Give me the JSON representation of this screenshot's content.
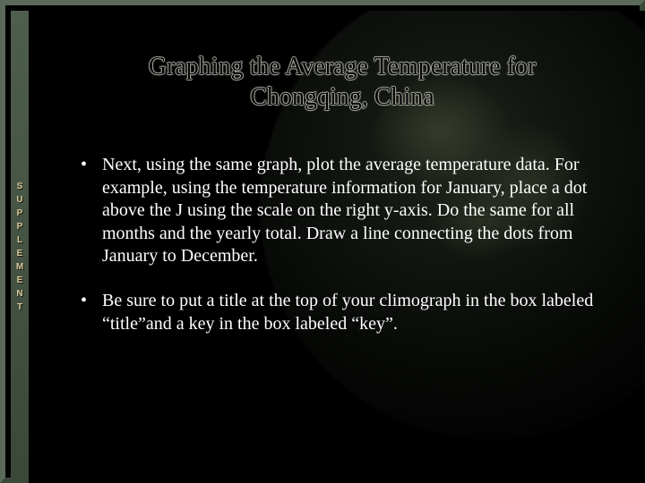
{
  "sidebar": {
    "letters": [
      "S",
      "U",
      "P",
      "P",
      "L",
      "E",
      "M",
      "E",
      "N",
      "T"
    ]
  },
  "slide": {
    "title": "Graphing the Average Temperature for Chongqing, China",
    "bullets": [
      "Next, using the same graph, plot the average temperature data.  For example, using the temperature information for January, place a dot above the J using the scale on the right y-axis.  Do the same for all months and the yearly total.  Draw a line connecting the dots from January to December.",
      "Be sure to put a title at the top of your climograph in the box labeled “title”and a key in the box labeled “key”."
    ]
  },
  "style": {
    "frame_color": "#4a5a4a",
    "background_color": "#000000",
    "title_color": "#000000",
    "body_text_color": "#ffffff",
    "title_fontsize": 28,
    "body_fontsize": 20,
    "font_family": "Times New Roman"
  }
}
